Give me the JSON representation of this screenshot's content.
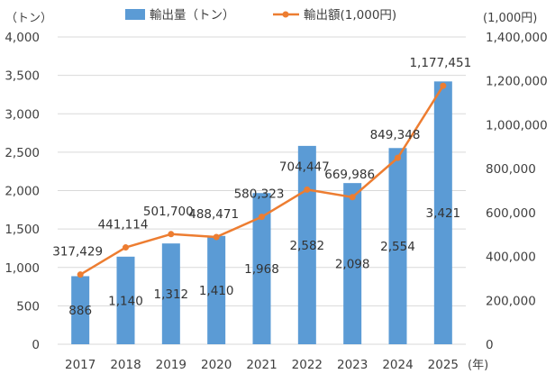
{
  "chart_data": {
    "type": "bar",
    "categories": [
      "2017",
      "2018",
      "2019",
      "2020",
      "2021",
      "2022",
      "2023",
      "2024",
      "2025"
    ],
    "x_unit": "(年)",
    "series": [
      {
        "name": "輸出量（トン）",
        "kind": "bar",
        "axis": "left",
        "color": "#5b9bd5",
        "values": [
          886,
          1140,
          1312,
          1410,
          1968,
          2582,
          2098,
          2554,
          3421
        ],
        "labels": [
          "886",
          "1,140",
          "1,312",
          "1,410",
          "1,968",
          "2,582",
          "2,098",
          "2,554",
          "3,421"
        ]
      },
      {
        "name": "輸出額(1,000円)",
        "kind": "line",
        "axis": "right",
        "color": "#ed7d31",
        "values": [
          317429,
          441114,
          501700,
          488471,
          580323,
          704447,
          669986,
          849348,
          1177451
        ],
        "labels": [
          "317,429",
          "441,114",
          "501,700",
          "488,471",
          "580,323",
          "704,447",
          "669,986",
          "849,348",
          "1,177,451"
        ]
      }
    ],
    "y_left": {
      "unit": "（トン）",
      "range": [
        0,
        4000
      ],
      "ticks": [
        0,
        500,
        1000,
        1500,
        2000,
        2500,
        3000,
        3500,
        4000
      ],
      "tick_labels": [
        "0",
        "500",
        "1,000",
        "1,500",
        "2,000",
        "2,500",
        "3,000",
        "3,500",
        "4,000"
      ]
    },
    "y_right": {
      "unit": "(1,000円)",
      "range": [
        0,
        1400000
      ],
      "ticks": [
        0,
        200000,
        400000,
        600000,
        800000,
        1000000,
        1200000,
        1400000
      ],
      "tick_labels": [
        "0",
        "200,000",
        "400,000",
        "600,000",
        "800,000",
        "1,000,000",
        "1,200,000",
        "1,400,000"
      ]
    },
    "grid": true,
    "legend": "top"
  }
}
